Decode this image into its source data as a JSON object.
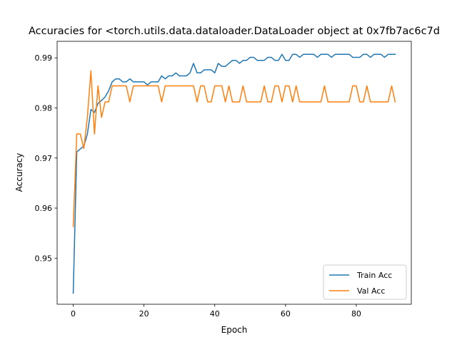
{
  "chart_data": {
    "type": "line",
    "title": "Accuracies for <torch.utils.data.dataloader.DataLoader object at 0x7fb7ac6c7d",
    "xlabel": "Epoch",
    "ylabel": "Accuracy",
    "xlim": [
      -4.55,
      95.55
    ],
    "ylim": [
      0.9408,
      0.9933
    ],
    "xticks": [
      0,
      20,
      40,
      60,
      80
    ],
    "xtick_labels": [
      "0",
      "20",
      "40",
      "60",
      "80"
    ],
    "yticks": [
      0.95,
      0.96,
      0.97,
      0.98,
      0.99
    ],
    "ytick_labels": [
      "0.95",
      "0.96",
      "0.97",
      "0.98",
      "0.99"
    ],
    "grid": false,
    "legend_position": "lower-right",
    "series": [
      {
        "name": "Train Acc",
        "color": "#1f77b4",
        "values": [
          0.943,
          0.9712,
          0.9718,
          0.9724,
          0.9748,
          0.9797,
          0.9791,
          0.9809,
          0.9815,
          0.9822,
          0.9834,
          0.9852,
          0.9858,
          0.9858,
          0.9852,
          0.9852,
          0.9858,
          0.9852,
          0.9852,
          0.9852,
          0.9852,
          0.9846,
          0.9852,
          0.9852,
          0.9852,
          0.9864,
          0.9858,
          0.9864,
          0.9864,
          0.987,
          0.9864,
          0.9864,
          0.9864,
          0.987,
          0.9889,
          0.987,
          0.987,
          0.9876,
          0.9876,
          0.9876,
          0.987,
          0.9889,
          0.9883,
          0.9883,
          0.9889,
          0.9895,
          0.9895,
          0.9889,
          0.9895,
          0.9895,
          0.9901,
          0.9901,
          0.9895,
          0.9895,
          0.9895,
          0.9901,
          0.9901,
          0.9895,
          0.9895,
          0.9907,
          0.9895,
          0.9895,
          0.9907,
          0.9907,
          0.9901,
          0.9907,
          0.9907,
          0.9907,
          0.9907,
          0.9901,
          0.9907,
          0.9907,
          0.9907,
          0.9901,
          0.9907,
          0.9907,
          0.9907,
          0.9907,
          0.9907,
          0.9901,
          0.9901,
          0.9901,
          0.9907,
          0.9907,
          0.9901,
          0.9907,
          0.9907,
          0.9907,
          0.9901,
          0.9907,
          0.9907,
          0.9907
        ]
      },
      {
        "name": "Val Acc",
        "color": "#ff7f0e",
        "values": [
          0.9563,
          0.9748,
          0.9748,
          0.9719,
          0.9781,
          0.9874,
          0.9748,
          0.9844,
          0.9781,
          0.9812,
          0.9812,
          0.9844,
          0.9844,
          0.9844,
          0.9844,
          0.9844,
          0.9812,
          0.9844,
          0.9844,
          0.9844,
          0.9844,
          0.9844,
          0.9844,
          0.9844,
          0.9844,
          0.9812,
          0.9844,
          0.9844,
          0.9844,
          0.9844,
          0.9844,
          0.9844,
          0.9844,
          0.9844,
          0.9844,
          0.9812,
          0.9844,
          0.9844,
          0.9812,
          0.9812,
          0.9844,
          0.9844,
          0.9844,
          0.9812,
          0.9844,
          0.9812,
          0.9812,
          0.9812,
          0.9844,
          0.9812,
          0.9812,
          0.9812,
          0.9812,
          0.9812,
          0.9844,
          0.9812,
          0.9812,
          0.9844,
          0.9844,
          0.9812,
          0.9844,
          0.9844,
          0.9812,
          0.9844,
          0.9812,
          0.9812,
          0.9812,
          0.9812,
          0.9812,
          0.9812,
          0.9812,
          0.9844,
          0.9812,
          0.9812,
          0.9812,
          0.9812,
          0.9812,
          0.9812,
          0.9812,
          0.9844,
          0.9844,
          0.9812,
          0.9812,
          0.9844,
          0.9812,
          0.9812,
          0.9812,
          0.9812,
          0.9812,
          0.9812,
          0.9844,
          0.9812
        ]
      }
    ]
  }
}
